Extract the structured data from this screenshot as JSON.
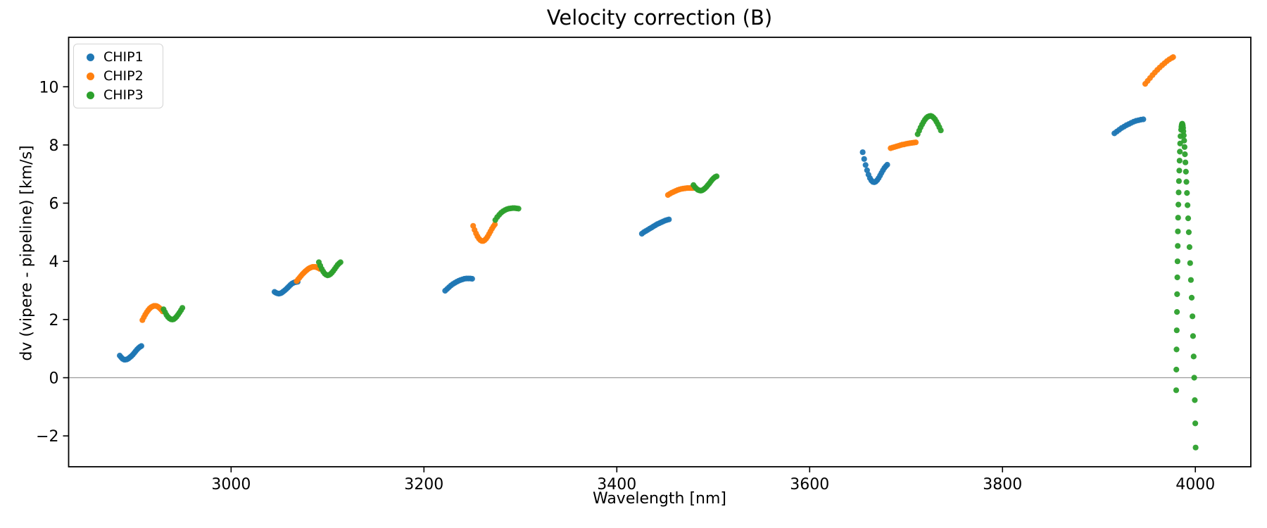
{
  "chart_data": {
    "type": "scatter",
    "title": "Velocity correction (B)",
    "xlabel": "Wavelength [nm]",
    "ylabel": "dv (vipere - pipeline) [km/s]",
    "xlim": [
      2831.5,
      4057.5
    ],
    "ylim": [
      -3.06,
      11.7
    ],
    "xticks": [
      3000,
      3200,
      3400,
      3600,
      3800,
      4000
    ],
    "yticks": [
      -2,
      0,
      2,
      4,
      6,
      8,
      10
    ],
    "grid": false,
    "zero_line": {
      "y": 0,
      "color": "#9b9b9b"
    },
    "legend_position": "upper left",
    "marker_radius": 4.1,
    "series": [
      {
        "name": "CHIP1",
        "color": "#1f77b4",
        "points": [
          [
            2884.5,
            0.76
          ],
          [
            2886,
            0.7
          ],
          [
            2887.5,
            0.65
          ],
          [
            2889,
            0.62
          ],
          [
            2890.5,
            0.62
          ],
          [
            2892,
            0.63
          ],
          [
            2893.5,
            0.66
          ],
          [
            2895,
            0.7
          ],
          [
            2896.5,
            0.74
          ],
          [
            2898,
            0.79
          ],
          [
            2899.5,
            0.85
          ],
          [
            2901,
            0.91
          ],
          [
            2902.5,
            0.97
          ],
          [
            2904,
            1.02
          ],
          [
            2905.5,
            1.06
          ],
          [
            2907,
            1.09
          ],
          [
            3045,
            2.95
          ],
          [
            3046.5,
            2.92
          ],
          [
            3048,
            2.9
          ],
          [
            3049.5,
            2.89
          ],
          [
            3051,
            2.9
          ],
          [
            3052.5,
            2.92
          ],
          [
            3054,
            2.96
          ],
          [
            3055.5,
            3.0
          ],
          [
            3057,
            3.04
          ],
          [
            3058.5,
            3.09
          ],
          [
            3060,
            3.14
          ],
          [
            3061.5,
            3.19
          ],
          [
            3063,
            3.23
          ],
          [
            3064.5,
            3.26
          ],
          [
            3066,
            3.28
          ],
          [
            3067.5,
            3.29
          ],
          [
            3069,
            3.3
          ],
          [
            3222,
            2.99
          ],
          [
            3224,
            3.05
          ],
          [
            3226,
            3.11
          ],
          [
            3228,
            3.17
          ],
          [
            3230,
            3.22
          ],
          [
            3232,
            3.26
          ],
          [
            3234,
            3.3
          ],
          [
            3236,
            3.33
          ],
          [
            3238,
            3.36
          ],
          [
            3240,
            3.38
          ],
          [
            3242,
            3.4
          ],
          [
            3244,
            3.41
          ],
          [
            3246,
            3.41
          ],
          [
            3248,
            3.41
          ],
          [
            3250,
            3.4
          ],
          [
            3426,
            4.95
          ],
          [
            3428,
            5.0
          ],
          [
            3430,
            5.04
          ],
          [
            3432,
            5.08
          ],
          [
            3434,
            5.12
          ],
          [
            3436,
            5.16
          ],
          [
            3438,
            5.2
          ],
          [
            3440,
            5.24
          ],
          [
            3442,
            5.28
          ],
          [
            3444,
            5.31
          ],
          [
            3446,
            5.34
          ],
          [
            3448,
            5.37
          ],
          [
            3450,
            5.4
          ],
          [
            3452,
            5.42
          ],
          [
            3454,
            5.44
          ],
          [
            3655,
            7.75
          ],
          [
            3656.5,
            7.52
          ],
          [
            3658,
            7.31
          ],
          [
            3659.5,
            7.13
          ],
          [
            3661,
            6.98
          ],
          [
            3662.5,
            6.86
          ],
          [
            3664,
            6.78
          ],
          [
            3665.5,
            6.73
          ],
          [
            3667,
            6.72
          ],
          [
            3668.5,
            6.74
          ],
          [
            3670,
            6.79
          ],
          [
            3671.5,
            6.86
          ],
          [
            3673,
            6.95
          ],
          [
            3674.5,
            7.04
          ],
          [
            3676,
            7.13
          ],
          [
            3677.5,
            7.21
          ],
          [
            3679,
            7.27
          ],
          [
            3680.5,
            7.32
          ],
          [
            3916,
            8.4
          ],
          [
            3918.5,
            8.46
          ],
          [
            3921,
            8.52
          ],
          [
            3923.5,
            8.58
          ],
          [
            3926,
            8.63
          ],
          [
            3928.5,
            8.68
          ],
          [
            3931,
            8.72
          ],
          [
            3933.5,
            8.76
          ],
          [
            3936,
            8.8
          ],
          [
            3938.5,
            8.83
          ],
          [
            3941,
            8.85
          ],
          [
            3943.5,
            8.87
          ],
          [
            3946,
            8.88
          ]
        ]
      },
      {
        "name": "CHIP2",
        "color": "#ff7f0e",
        "points": [
          [
            2908,
            1.98
          ],
          [
            2909.5,
            2.08
          ],
          [
            2911,
            2.17
          ],
          [
            2912.5,
            2.25
          ],
          [
            2914,
            2.32
          ],
          [
            2915.5,
            2.38
          ],
          [
            2917,
            2.42
          ],
          [
            2918.5,
            2.45
          ],
          [
            2920,
            2.47
          ],
          [
            2921.5,
            2.47
          ],
          [
            2923,
            2.46
          ],
          [
            2924.5,
            2.43
          ],
          [
            2926,
            2.39
          ],
          [
            2927.5,
            2.34
          ],
          [
            2929,
            2.28
          ],
          [
            3068,
            3.32
          ],
          [
            3069.5,
            3.38
          ],
          [
            3071,
            3.44
          ],
          [
            3072.5,
            3.5
          ],
          [
            3074,
            3.56
          ],
          [
            3075.5,
            3.61
          ],
          [
            3077,
            3.66
          ],
          [
            3078.5,
            3.7
          ],
          [
            3080,
            3.74
          ],
          [
            3081.5,
            3.77
          ],
          [
            3083,
            3.79
          ],
          [
            3084.5,
            3.81
          ],
          [
            3086,
            3.81
          ],
          [
            3087.5,
            3.81
          ],
          [
            3089,
            3.79
          ],
          [
            3090.5,
            3.77
          ],
          [
            3092,
            3.74
          ],
          [
            3251,
            5.22
          ],
          [
            3252.5,
            5.08
          ],
          [
            3254,
            4.96
          ],
          [
            3255.5,
            4.86
          ],
          [
            3257,
            4.78
          ],
          [
            3258.5,
            4.73
          ],
          [
            3260,
            4.7
          ],
          [
            3261.5,
            4.7
          ],
          [
            3263,
            4.73
          ],
          [
            3264.5,
            4.78
          ],
          [
            3266,
            4.85
          ],
          [
            3267.5,
            4.94
          ],
          [
            3269,
            5.03
          ],
          [
            3270.5,
            5.12
          ],
          [
            3272,
            5.2
          ],
          [
            3273.5,
            5.27
          ],
          [
            3453,
            6.28
          ],
          [
            3455,
            6.32
          ],
          [
            3457,
            6.36
          ],
          [
            3459,
            6.39
          ],
          [
            3461,
            6.42
          ],
          [
            3463,
            6.45
          ],
          [
            3465,
            6.47
          ],
          [
            3467,
            6.49
          ],
          [
            3469,
            6.5
          ],
          [
            3471,
            6.51
          ],
          [
            3473,
            6.52
          ],
          [
            3475,
            6.52
          ],
          [
            3477,
            6.52
          ],
          [
            3479,
            6.52
          ],
          [
            3684,
            7.89
          ],
          [
            3686,
            7.91
          ],
          [
            3688,
            7.93
          ],
          [
            3690,
            7.95
          ],
          [
            3692,
            7.97
          ],
          [
            3694,
            7.99
          ],
          [
            3696,
            8.01
          ],
          [
            3698,
            8.02
          ],
          [
            3700,
            8.04
          ],
          [
            3702,
            8.05
          ],
          [
            3704,
            8.06
          ],
          [
            3706,
            8.07
          ],
          [
            3708,
            8.08
          ],
          [
            3710,
            8.09
          ],
          [
            3948,
            10.1
          ],
          [
            3950.5,
            10.2
          ],
          [
            3953,
            10.3
          ],
          [
            3955.5,
            10.4
          ],
          [
            3958,
            10.49
          ],
          [
            3960.5,
            10.58
          ],
          [
            3963,
            10.66
          ],
          [
            3965.5,
            10.74
          ],
          [
            3968,
            10.81
          ],
          [
            3970.5,
            10.88
          ],
          [
            3973,
            10.94
          ],
          [
            3975.5,
            10.99
          ],
          [
            3977,
            11.02
          ]
        ]
      },
      {
        "name": "CHIP3",
        "color": "#2ca02c",
        "points": [
          [
            2930,
            2.35
          ],
          [
            2931.5,
            2.25
          ],
          [
            2933,
            2.16
          ],
          [
            2934.5,
            2.09
          ],
          [
            2936,
            2.04
          ],
          [
            2937.5,
            2.01
          ],
          [
            2939,
            2.0
          ],
          [
            2940.5,
            2.01
          ],
          [
            2942,
            2.05
          ],
          [
            2943.5,
            2.1
          ],
          [
            2945,
            2.17
          ],
          [
            2946.5,
            2.24
          ],
          [
            2948,
            2.32
          ],
          [
            2949.5,
            2.4
          ],
          [
            3091,
            3.97
          ],
          [
            3092.5,
            3.85
          ],
          [
            3094,
            3.74
          ],
          [
            3095.5,
            3.65
          ],
          [
            3097,
            3.58
          ],
          [
            3098.5,
            3.54
          ],
          [
            3100,
            3.52
          ],
          [
            3101.5,
            3.53
          ],
          [
            3103,
            3.56
          ],
          [
            3104.5,
            3.61
          ],
          [
            3106,
            3.67
          ],
          [
            3107.5,
            3.74
          ],
          [
            3109,
            3.81
          ],
          [
            3110.5,
            3.88
          ],
          [
            3112,
            3.93
          ],
          [
            3113.5,
            3.97
          ],
          [
            3274,
            5.42
          ],
          [
            3276,
            5.52
          ],
          [
            3278,
            5.6
          ],
          [
            3280,
            5.67
          ],
          [
            3282,
            5.72
          ],
          [
            3284,
            5.76
          ],
          [
            3286,
            5.79
          ],
          [
            3288,
            5.81
          ],
          [
            3290,
            5.82
          ],
          [
            3292,
            5.83
          ],
          [
            3294,
            5.83
          ],
          [
            3296,
            5.82
          ],
          [
            3298,
            5.81
          ],
          [
            3479.5,
            6.62
          ],
          [
            3481,
            6.55
          ],
          [
            3482.5,
            6.5
          ],
          [
            3484,
            6.46
          ],
          [
            3485.5,
            6.44
          ],
          [
            3487,
            6.43
          ],
          [
            3488.5,
            6.44
          ],
          [
            3490,
            6.47
          ],
          [
            3491.5,
            6.51
          ],
          [
            3493,
            6.56
          ],
          [
            3494.5,
            6.62
          ],
          [
            3496,
            6.68
          ],
          [
            3497.5,
            6.75
          ],
          [
            3499,
            6.81
          ],
          [
            3500.5,
            6.86
          ],
          [
            3502,
            6.9
          ],
          [
            3503.5,
            6.92
          ],
          [
            3712,
            8.37
          ],
          [
            3713.5,
            8.49
          ],
          [
            3715,
            8.6
          ],
          [
            3716.5,
            8.7
          ],
          [
            3718,
            8.79
          ],
          [
            3719.5,
            8.87
          ],
          [
            3721,
            8.93
          ],
          [
            3722.5,
            8.97
          ],
          [
            3724,
            8.99
          ],
          [
            3725.5,
            9.0
          ],
          [
            3727,
            8.98
          ],
          [
            3728.5,
            8.94
          ],
          [
            3730,
            8.88
          ],
          [
            3731.5,
            8.8
          ],
          [
            3733,
            8.71
          ],
          [
            3734.5,
            8.61
          ],
          [
            3736,
            8.5
          ],
          [
            3985.2,
            8.52
          ],
          [
            3985.5,
            8.62
          ],
          [
            3985.8,
            8.68
          ],
          [
            3986.1,
            8.72
          ],
          [
            3986.4,
            8.73
          ],
          [
            3986.7,
            8.71
          ],
          [
            3987.0,
            8.66
          ],
          [
            3987.3,
            8.58
          ],
          [
            3987.6,
            8.47
          ],
          [
            3988.0,
            8.33
          ],
          [
            3988.4,
            8.15
          ],
          [
            3988.8,
            7.93
          ],
          [
            3989.2,
            7.68
          ],
          [
            3989.7,
            7.4
          ],
          [
            3990.2,
            7.08
          ],
          [
            3990.7,
            6.73
          ],
          [
            3991.3,
            6.35
          ],
          [
            3991.9,
            5.93
          ],
          [
            3992.5,
            5.48
          ],
          [
            3993.2,
            5.0
          ],
          [
            3993.9,
            4.49
          ],
          [
            3994.6,
            3.94
          ],
          [
            3995.4,
            3.36
          ],
          [
            3996.2,
            2.75
          ],
          [
            3997.0,
            2.11
          ],
          [
            3997.6,
            1.43
          ],
          [
            3998.2,
            0.73
          ],
          [
            3998.8,
            0.0
          ],
          [
            3999.4,
            -0.77
          ],
          [
            3999.9,
            -1.57
          ],
          [
            4000.3,
            -2.4
          ],
          [
            3984.6,
            8.3
          ],
          [
            3984.2,
            8.05
          ],
          [
            3983.9,
            7.77
          ],
          [
            3983.6,
            7.46
          ],
          [
            3983.3,
            7.12
          ],
          [
            3983.0,
            6.76
          ],
          [
            3982.7,
            6.37
          ],
          [
            3982.4,
            5.95
          ],
          [
            3982.1,
            5.5
          ],
          [
            3981.9,
            5.03
          ],
          [
            3981.7,
            4.53
          ],
          [
            3981.5,
            4.0
          ],
          [
            3981.3,
            3.45
          ],
          [
            3981.1,
            2.87
          ],
          [
            3980.9,
            2.26
          ],
          [
            3980.7,
            1.63
          ],
          [
            3980.5,
            0.97
          ],
          [
            3980.3,
            0.28
          ],
          [
            3980.1,
            -0.43
          ]
        ]
      }
    ]
  }
}
